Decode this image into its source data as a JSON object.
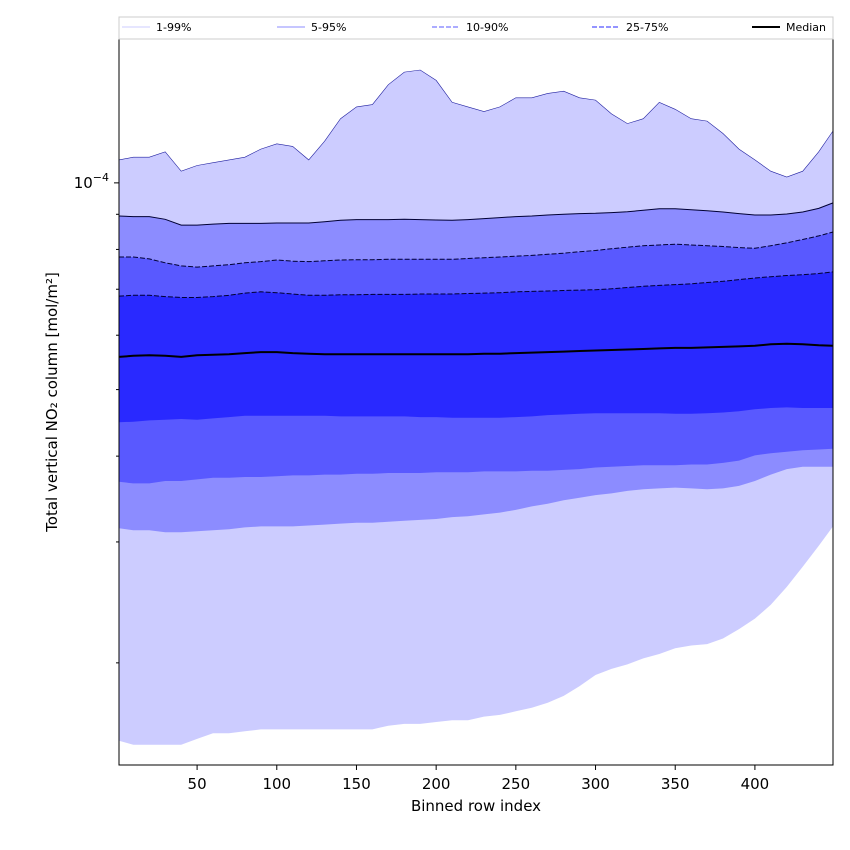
{
  "chart_data": {
    "type": "area",
    "title": "",
    "xlabel": "Binned row index",
    "ylabel": "Total vertical NO₂ column [mol/m²]",
    "y_scale": "log",
    "xlim": [
      1,
      449
    ],
    "ylim": [
      1.42e-05,
      0.000162
    ],
    "x_ticks": [
      50,
      100,
      150,
      200,
      250,
      300,
      350,
      400
    ],
    "y_tick_labels": [
      {
        "value": 0.0001,
        "base": "10",
        "exponent": "−4"
      }
    ],
    "grid": false,
    "legend_position": "top",
    "legend": {
      "items": [
        {
          "label": "1-99%",
          "color": "#ccccff",
          "style": "solid"
        },
        {
          "label": "5-95%",
          "color": "#8c8cff",
          "style": "solid"
        },
        {
          "label": "10-90%",
          "color": "#5959ff",
          "style": "dashed"
        },
        {
          "label": "25-75%",
          "color": "#2929ff",
          "style": "dashed"
        },
        {
          "label": "Median",
          "color": "#000000",
          "style": "solid"
        }
      ]
    },
    "x": [
      1,
      10,
      20,
      30,
      40,
      50,
      60,
      70,
      80,
      90,
      100,
      110,
      120,
      130,
      140,
      150,
      160,
      170,
      180,
      190,
      200,
      210,
      220,
      230,
      240,
      250,
      260,
      270,
      280,
      290,
      300,
      310,
      320,
      330,
      340,
      350,
      360,
      370,
      380,
      390,
      400,
      410,
      420,
      430,
      440,
      449
    ],
    "bands": [
      {
        "name": "1-99%",
        "color": "#ccccff",
        "upper": [
          0.000108,
          0.000109,
          0.000109,
          0.000111,
          0.000104,
          0.000106,
          0.000107,
          0.000108,
          0.000109,
          0.000112,
          0.000114,
          0.000113,
          0.000108,
          0.000115,
          0.000124,
          0.000129,
          0.00013,
          0.000139,
          0.000145,
          0.000146,
          0.000141,
          0.000131,
          0.000129,
          0.000127,
          0.000129,
          0.000133,
          0.000133,
          0.000135,
          0.000136,
          0.000133,
          0.000132,
          0.000126,
          0.000122,
          0.000124,
          0.000131,
          0.000128,
          0.000124,
          0.000123,
          0.000118,
          0.000112,
          0.000108,
          0.000104,
          0.000102,
          0.000104,
          0.000111,
          0.000119
        ],
        "lower": [
          1.54e-05,
          1.52e-05,
          1.52e-05,
          1.52e-05,
          1.52e-05,
          1.55e-05,
          1.58e-05,
          1.58e-05,
          1.59e-05,
          1.6e-05,
          1.6e-05,
          1.6e-05,
          1.6e-05,
          1.6e-05,
          1.6e-05,
          1.6e-05,
          1.6e-05,
          1.62e-05,
          1.63e-05,
          1.63e-05,
          1.64e-05,
          1.65e-05,
          1.65e-05,
          1.67e-05,
          1.68e-05,
          1.7e-05,
          1.72e-05,
          1.75e-05,
          1.79e-05,
          1.85e-05,
          1.92e-05,
          1.96e-05,
          1.99e-05,
          2.03e-05,
          2.06e-05,
          2.1e-05,
          2.12e-05,
          2.13e-05,
          2.17e-05,
          2.24e-05,
          2.32e-05,
          2.43e-05,
          2.58e-05,
          2.76e-05,
          2.96e-05,
          3.16e-05
        ]
      },
      {
        "name": "5-95%",
        "color": "#8c8cff",
        "upper": [
          8.95e-05,
          8.93e-05,
          8.93e-05,
          8.85e-05,
          8.68e-05,
          8.68e-05,
          8.71e-05,
          8.73e-05,
          8.73e-05,
          8.73e-05,
          8.74e-05,
          8.74e-05,
          8.74e-05,
          8.78e-05,
          8.82e-05,
          8.84e-05,
          8.84e-05,
          8.84e-05,
          8.85e-05,
          8.84e-05,
          8.83e-05,
          8.82e-05,
          8.84e-05,
          8.87e-05,
          8.9e-05,
          8.93e-05,
          8.95e-05,
          8.98e-05,
          9e-05,
          9.02e-05,
          9.03e-05,
          9.05e-05,
          9.08e-05,
          9.12e-05,
          9.17e-05,
          9.17e-05,
          9.14e-05,
          9.11e-05,
          9.07e-05,
          9.02e-05,
          8.98e-05,
          8.98e-05,
          9.01e-05,
          9.07e-05,
          9.18e-05,
          9.35e-05
        ],
        "lower": [
          3.14e-05,
          3.12e-05,
          3.12e-05,
          3.1e-05,
          3.1e-05,
          3.11e-05,
          3.12e-05,
          3.13e-05,
          3.15e-05,
          3.16e-05,
          3.16e-05,
          3.16e-05,
          3.17e-05,
          3.18e-05,
          3.19e-05,
          3.2e-05,
          3.2e-05,
          3.21e-05,
          3.22e-05,
          3.23e-05,
          3.24e-05,
          3.26e-05,
          3.27e-05,
          3.29e-05,
          3.31e-05,
          3.34e-05,
          3.38e-05,
          3.41e-05,
          3.45e-05,
          3.48e-05,
          3.51e-05,
          3.53e-05,
          3.56e-05,
          3.58e-05,
          3.59e-05,
          3.6e-05,
          3.59e-05,
          3.58e-05,
          3.59e-05,
          3.62e-05,
          3.68e-05,
          3.76e-05,
          3.83e-05,
          3.86e-05,
          3.86e-05,
          3.86e-05
        ]
      },
      {
        "name": "10-90%",
        "color": "#5959ff",
        "upper": [
          7.8e-05,
          7.8e-05,
          7.75e-05,
          7.65e-05,
          7.57e-05,
          7.54e-05,
          7.57e-05,
          7.6e-05,
          7.65e-05,
          7.68e-05,
          7.72e-05,
          7.69e-05,
          7.68e-05,
          7.7e-05,
          7.72e-05,
          7.73e-05,
          7.73e-05,
          7.74e-05,
          7.74e-05,
          7.74e-05,
          7.74e-05,
          7.74e-05,
          7.76e-05,
          7.78e-05,
          7.8e-05,
          7.82e-05,
          7.84e-05,
          7.87e-05,
          7.9e-05,
          7.94e-05,
          7.97e-05,
          8.02e-05,
          8.06e-05,
          8.1e-05,
          8.12e-05,
          8.14e-05,
          8.12e-05,
          8.1e-05,
          8.08e-05,
          8.05e-05,
          8.03e-05,
          8.1e-05,
          8.18e-05,
          8.27e-05,
          8.37e-05,
          8.48e-05
        ],
        "lower": [
          3.67e-05,
          3.65e-05,
          3.65e-05,
          3.68e-05,
          3.68e-05,
          3.7e-05,
          3.72e-05,
          3.72e-05,
          3.73e-05,
          3.73e-05,
          3.74e-05,
          3.75e-05,
          3.75e-05,
          3.76e-05,
          3.76e-05,
          3.77e-05,
          3.77e-05,
          3.78e-05,
          3.78e-05,
          3.78e-05,
          3.79e-05,
          3.79e-05,
          3.79e-05,
          3.8e-05,
          3.8e-05,
          3.8e-05,
          3.81e-05,
          3.81e-05,
          3.82e-05,
          3.83e-05,
          3.85e-05,
          3.86e-05,
          3.87e-05,
          3.88e-05,
          3.88e-05,
          3.88e-05,
          3.89e-05,
          3.89e-05,
          3.91e-05,
          3.94e-05,
          4.01e-05,
          4.04e-05,
          4.06e-05,
          4.08e-05,
          4.09e-05,
          4.1e-05
        ]
      },
      {
        "name": "25-75%",
        "color": "#2929ff",
        "upper": [
          6.84e-05,
          6.86e-05,
          6.86e-05,
          6.83e-05,
          6.81e-05,
          6.81e-05,
          6.83e-05,
          6.86e-05,
          6.91e-05,
          6.94e-05,
          6.92e-05,
          6.89e-05,
          6.86e-05,
          6.86e-05,
          6.87e-05,
          6.87e-05,
          6.88e-05,
          6.88e-05,
          6.88e-05,
          6.89e-05,
          6.89e-05,
          6.89e-05,
          6.9e-05,
          6.91e-05,
          6.92e-05,
          6.94e-05,
          6.95e-05,
          6.96e-05,
          6.97e-05,
          6.98e-05,
          6.99e-05,
          7.01e-05,
          7.04e-05,
          7.07e-05,
          7.09e-05,
          7.11e-05,
          7.13e-05,
          7.16e-05,
          7.19e-05,
          7.23e-05,
          7.27e-05,
          7.3e-05,
          7.33e-05,
          7.35e-05,
          7.38e-05,
          7.42e-05
        ],
        "lower": [
          4.48e-05,
          4.49e-05,
          4.51e-05,
          4.52e-05,
          4.53e-05,
          4.52e-05,
          4.54e-05,
          4.56e-05,
          4.58e-05,
          4.58e-05,
          4.58e-05,
          4.58e-05,
          4.58e-05,
          4.58e-05,
          4.57e-05,
          4.57e-05,
          4.57e-05,
          4.57e-05,
          4.57e-05,
          4.56e-05,
          4.56e-05,
          4.55e-05,
          4.55e-05,
          4.55e-05,
          4.55e-05,
          4.56e-05,
          4.57e-05,
          4.59e-05,
          4.6e-05,
          4.61e-05,
          4.62e-05,
          4.62e-05,
          4.62e-05,
          4.62e-05,
          4.62e-05,
          4.61e-05,
          4.61e-05,
          4.62e-05,
          4.63e-05,
          4.65e-05,
          4.68e-05,
          4.7e-05,
          4.71e-05,
          4.7e-05,
          4.7e-05,
          4.7e-05
        ]
      }
    ],
    "series": [
      {
        "name": "Median",
        "color": "#000000",
        "values": [
          5.58e-05,
          5.6e-05,
          5.61e-05,
          5.6e-05,
          5.58e-05,
          5.61e-05,
          5.62e-05,
          5.63e-05,
          5.65e-05,
          5.67e-05,
          5.67e-05,
          5.65e-05,
          5.64e-05,
          5.63e-05,
          5.63e-05,
          5.63e-05,
          5.63e-05,
          5.63e-05,
          5.63e-05,
          5.63e-05,
          5.63e-05,
          5.63e-05,
          5.63e-05,
          5.64e-05,
          5.64e-05,
          5.65e-05,
          5.66e-05,
          5.67e-05,
          5.68e-05,
          5.69e-05,
          5.7e-05,
          5.71e-05,
          5.72e-05,
          5.73e-05,
          5.74e-05,
          5.75e-05,
          5.75e-05,
          5.76e-05,
          5.77e-05,
          5.78e-05,
          5.79e-05,
          5.82e-05,
          5.83e-05,
          5.82e-05,
          5.8e-05,
          5.79e-05
        ]
      }
    ]
  }
}
